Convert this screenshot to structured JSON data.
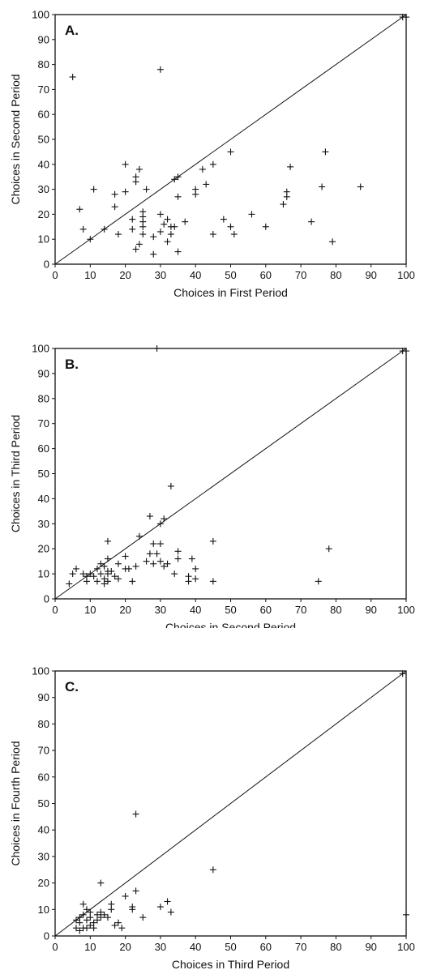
{
  "chart_data": [
    {
      "type": "scatter",
      "panel_label": "A.",
      "xlabel": "Choices in First Period",
      "ylabel": "Choices in Second Period",
      "xlim": [
        0,
        100
      ],
      "ylim": [
        0,
        100
      ],
      "xticks": [
        0,
        10,
        20,
        30,
        40,
        50,
        60,
        70,
        80,
        90,
        100
      ],
      "yticks": [
        0,
        10,
        20,
        30,
        40,
        50,
        60,
        70,
        80,
        90,
        100
      ],
      "reference_line": "y = x",
      "grid": false,
      "marker": "plus",
      "points": [
        [
          5,
          75
        ],
        [
          7,
          22
        ],
        [
          8,
          14
        ],
        [
          10,
          10
        ],
        [
          11,
          30
        ],
        [
          14,
          14
        ],
        [
          17,
          28
        ],
        [
          17,
          23
        ],
        [
          18,
          12
        ],
        [
          20,
          40
        ],
        [
          20,
          29
        ],
        [
          22,
          18
        ],
        [
          22,
          14
        ],
        [
          23,
          35
        ],
        [
          23,
          33
        ],
        [
          23,
          6
        ],
        [
          24,
          38
        ],
        [
          24,
          8
        ],
        [
          25,
          21
        ],
        [
          25,
          19
        ],
        [
          25,
          17
        ],
        [
          25,
          15
        ],
        [
          25,
          12
        ],
        [
          26,
          30
        ],
        [
          28,
          11
        ],
        [
          28,
          4
        ],
        [
          30,
          78
        ],
        [
          30,
          20
        ],
        [
          30,
          13
        ],
        [
          31,
          16
        ],
        [
          32,
          18
        ],
        [
          32,
          9
        ],
        [
          33,
          15
        ],
        [
          33,
          12
        ],
        [
          34,
          34
        ],
        [
          34,
          15
        ],
        [
          35,
          35
        ],
        [
          35,
          27
        ],
        [
          35,
          5
        ],
        [
          37,
          17
        ],
        [
          40,
          30
        ],
        [
          40,
          28
        ],
        [
          42,
          38
        ],
        [
          43,
          32
        ],
        [
          45,
          40
        ],
        [
          45,
          12
        ],
        [
          48,
          18
        ],
        [
          50,
          45
        ],
        [
          50,
          15
        ],
        [
          51,
          12
        ],
        [
          56,
          20
        ],
        [
          60,
          15
        ],
        [
          65,
          24
        ],
        [
          66,
          29
        ],
        [
          66,
          27
        ],
        [
          67,
          39
        ],
        [
          73,
          17
        ],
        [
          76,
          31
        ],
        [
          77,
          45
        ],
        [
          79,
          9
        ],
        [
          87,
          31
        ],
        [
          99,
          99
        ],
        [
          100,
          99
        ]
      ]
    },
    {
      "type": "scatter",
      "panel_label": "B.",
      "xlabel": "Choices in Second Period",
      "ylabel": "Choices in Third Period",
      "xlim": [
        0,
        100
      ],
      "ylim": [
        0,
        100
      ],
      "xticks": [
        0,
        10,
        20,
        30,
        40,
        50,
        60,
        70,
        80,
        90,
        100
      ],
      "yticks": [
        0,
        10,
        20,
        30,
        40,
        50,
        60,
        70,
        80,
        90,
        100
      ],
      "reference_line": "y = x",
      "grid": false,
      "marker": "plus",
      "points": [
        [
          4,
          6
        ],
        [
          5,
          10
        ],
        [
          6,
          12
        ],
        [
          8,
          10
        ],
        [
          9,
          7
        ],
        [
          9,
          9
        ],
        [
          10,
          10
        ],
        [
          11,
          9
        ],
        [
          12,
          12
        ],
        [
          12,
          7
        ],
        [
          13,
          14
        ],
        [
          13,
          10
        ],
        [
          14,
          13
        ],
        [
          14,
          8
        ],
        [
          14,
          6
        ],
        [
          15,
          23
        ],
        [
          15,
          16
        ],
        [
          15,
          11
        ],
        [
          15,
          10
        ],
        [
          15,
          7
        ],
        [
          16,
          11
        ],
        [
          17,
          9
        ],
        [
          18,
          14
        ],
        [
          18,
          8
        ],
        [
          20,
          17
        ],
        [
          20,
          12
        ],
        [
          21,
          12
        ],
        [
          22,
          7
        ],
        [
          23,
          13
        ],
        [
          24,
          25
        ],
        [
          26,
          15
        ],
        [
          27,
          33
        ],
        [
          27,
          18
        ],
        [
          28,
          22
        ],
        [
          28,
          14
        ],
        [
          29,
          18
        ],
        [
          30,
          30
        ],
        [
          30,
          22
        ],
        [
          30,
          15
        ],
        [
          31,
          32
        ],
        [
          31,
          13
        ],
        [
          32,
          14
        ],
        [
          33,
          45
        ],
        [
          34,
          10
        ],
        [
          35,
          19
        ],
        [
          35,
          16
        ],
        [
          38,
          9
        ],
        [
          38,
          7
        ],
        [
          39,
          16
        ],
        [
          40,
          12
        ],
        [
          40,
          8
        ],
        [
          45,
          23
        ],
        [
          45,
          7
        ],
        [
          75,
          7
        ],
        [
          78,
          20
        ],
        [
          99,
          99
        ],
        [
          100,
          99
        ],
        [
          29,
          100
        ]
      ]
    },
    {
      "type": "scatter",
      "panel_label": "C.",
      "xlabel": "Choices in Third Period",
      "ylabel": "Choices in Fourth Period",
      "xlim": [
        0,
        100
      ],
      "ylim": [
        0,
        100
      ],
      "xticks": [
        0,
        10,
        20,
        30,
        40,
        50,
        60,
        70,
        80,
        90,
        100
      ],
      "yticks": [
        0,
        10,
        20,
        30,
        40,
        50,
        60,
        70,
        80,
        90,
        100
      ],
      "reference_line": "y = x",
      "grid": false,
      "marker": "plus",
      "points": [
        [
          6,
          6
        ],
        [
          6,
          3
        ],
        [
          7,
          7
        ],
        [
          7,
          5
        ],
        [
          7,
          2
        ],
        [
          8,
          12
        ],
        [
          8,
          8
        ],
        [
          8,
          3
        ],
        [
          9,
          10
        ],
        [
          9,
          6
        ],
        [
          9,
          3
        ],
        [
          10,
          9
        ],
        [
          10,
          7
        ],
        [
          10,
          4
        ],
        [
          11,
          5
        ],
        [
          11,
          3
        ],
        [
          12,
          8
        ],
        [
          12,
          6
        ],
        [
          13,
          20
        ],
        [
          13,
          9
        ],
        [
          13,
          7
        ],
        [
          14,
          8
        ],
        [
          15,
          7
        ],
        [
          16,
          12
        ],
        [
          16,
          10
        ],
        [
          17,
          4
        ],
        [
          18,
          5
        ],
        [
          19,
          3
        ],
        [
          20,
          15
        ],
        [
          22,
          11
        ],
        [
          22,
          10
        ],
        [
          23,
          46
        ],
        [
          23,
          17
        ],
        [
          25,
          7
        ],
        [
          30,
          11
        ],
        [
          32,
          13
        ],
        [
          33,
          9
        ],
        [
          45,
          25
        ],
        [
          99,
          99
        ],
        [
          100,
          8
        ]
      ]
    }
  ]
}
